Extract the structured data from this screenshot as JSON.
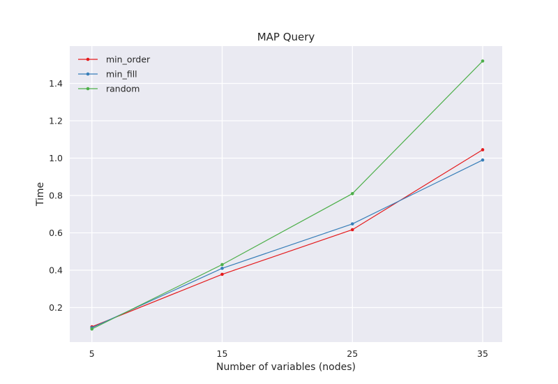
{
  "chart_data": {
    "type": "line",
    "title": "MAP Query",
    "xlabel": "Number of variables (nodes)",
    "ylabel": "Time",
    "x": [
      5,
      15,
      25,
      35
    ],
    "xticks": [
      "5",
      "15",
      "25",
      "35"
    ],
    "yticks": [
      "0.2",
      "0.4",
      "0.6",
      "0.8",
      "1.0",
      "1.2",
      "1.4"
    ],
    "ytick_values": [
      0.2,
      0.4,
      0.6,
      0.8,
      1.0,
      1.2,
      1.4
    ],
    "xlim": [
      3.3,
      36.5
    ],
    "ylim": [
      0.015,
      1.6
    ],
    "grid": true,
    "legend_position": "upper-left",
    "background_color": "#eaeaf2",
    "grid_color": "#ffffff",
    "series": [
      {
        "name": "min_order",
        "color": "#e41a1c",
        "values": [
          0.097,
          0.378,
          0.617,
          1.045
        ]
      },
      {
        "name": "min_fill",
        "color": "#377eb8",
        "values": [
          0.092,
          0.41,
          0.648,
          0.99
        ]
      },
      {
        "name": "random",
        "color": "#4daf4a",
        "values": [
          0.085,
          0.43,
          0.81,
          1.52
        ]
      }
    ]
  }
}
